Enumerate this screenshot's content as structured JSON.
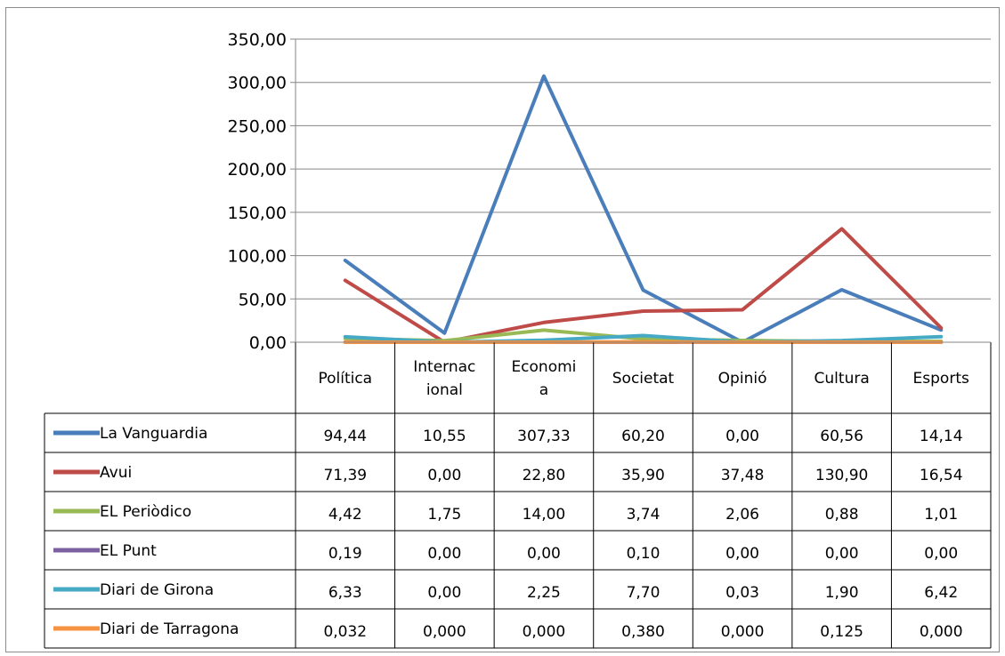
{
  "chart_data": {
    "type": "line",
    "categories": [
      "Política",
      "Internacional",
      "Economia",
      "Societat",
      "Opinió",
      "Cultura",
      "Esports"
    ],
    "category_lines": [
      [
        "Política"
      ],
      [
        "Internac",
        "ional"
      ],
      [
        "Economi",
        "a"
      ],
      [
        "Societat"
      ],
      [
        "Opinió"
      ],
      [
        "Cultura"
      ],
      [
        "Esports"
      ]
    ],
    "ylim": [
      0,
      350
    ],
    "yticks": [
      "0,00",
      "50,00",
      "100,00",
      "150,00",
      "200,00",
      "250,00",
      "300,00",
      "350,00"
    ],
    "grid": true,
    "legend": "data-table",
    "series": [
      {
        "name": "La Vanguardia",
        "color": "#4a7ebb",
        "values": [
          94.44,
          10.55,
          307.33,
          60.2,
          0.0,
          60.56,
          14.14
        ],
        "labels": [
          "94,44",
          "10,55",
          "307,33",
          "60,20",
          "0,00",
          "60,56",
          "14,14"
        ]
      },
      {
        "name": "Avui",
        "color": "#be4b48",
        "values": [
          71.39,
          0.0,
          22.8,
          35.9,
          37.48,
          130.9,
          16.54
        ],
        "labels": [
          "71,39",
          "0,00",
          "22,80",
          "35,90",
          "37,48",
          "130,90",
          "16,54"
        ]
      },
      {
        "name": "EL Periòdico",
        "color": "#98b954",
        "values": [
          4.42,
          1.75,
          14.0,
          3.74,
          2.06,
          0.88,
          1.01
        ],
        "labels": [
          "4,42",
          "1,75",
          "14,00",
          "3,74",
          "2,06",
          "0,88",
          "1,01"
        ]
      },
      {
        "name": "EL Punt",
        "color": "#7d60a0",
        "values": [
          0.19,
          0.0,
          0.0,
          0.1,
          0.0,
          0.0,
          0.0
        ],
        "labels": [
          "0,19",
          "0,00",
          "0,00",
          "0,10",
          "0,00",
          "0,00",
          "0,00"
        ]
      },
      {
        "name": "Diari de Girona",
        "color": "#46aac5",
        "values": [
          6.33,
          0.0,
          2.25,
          7.7,
          0.03,
          1.9,
          6.42
        ],
        "labels": [
          "6,33",
          "0,00",
          "2,25",
          "7,70",
          "0,03",
          "1,90",
          "6,42"
        ]
      },
      {
        "name": "Diari de Tarragona",
        "color": "#f69240",
        "values": [
          0.032,
          0.0,
          0.0,
          0.38,
          0.0,
          0.125,
          0.0
        ],
        "labels": [
          "0,032",
          "0,000",
          "0,000",
          "0,380",
          "0,000",
          "0,125",
          "0,000"
        ]
      }
    ]
  }
}
